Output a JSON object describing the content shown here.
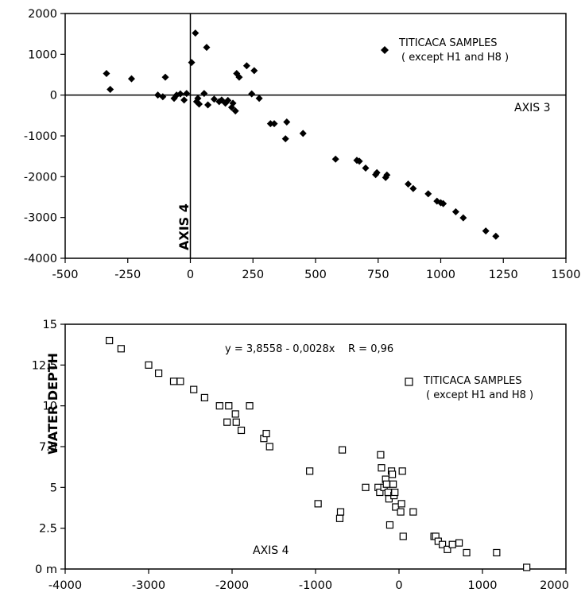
{
  "chart_data": [
    {
      "type": "scatter",
      "title": "",
      "xlabel": "AXIS 3",
      "ylabel": "AXIS 4",
      "xlim": [
        -500,
        1500
      ],
      "ylim": [
        -4000,
        2000
      ],
      "x_ticks": [
        "-500",
        "-250",
        "0",
        "250",
        "500",
        "750",
        "1000",
        "1250",
        "1500"
      ],
      "y_ticks": [
        "2000",
        "1000",
        "0",
        "-1000",
        "-2000",
        "-3000",
        "-4000"
      ],
      "reference_lines": "x = 0 and y = 0",
      "grid": false,
      "legend": {
        "position": "top-right",
        "marker": "filled-diamond",
        "lines": [
          "TITICACA SAMPLES",
          "( except H1 and H8 )"
        ]
      },
      "series": [
        {
          "marker": "filled-diamond",
          "points": [
            [
              -335,
              530
            ],
            [
              -320,
              140
            ],
            [
              -235,
              400
            ],
            [
              -130,
              0
            ],
            [
              -110,
              -40
            ],
            [
              -100,
              440
            ],
            [
              -65,
              -80
            ],
            [
              -55,
              0
            ],
            [
              -40,
              30
            ],
            [
              -25,
              -120
            ],
            [
              -15,
              40
            ],
            [
              5,
              800
            ],
            [
              20,
              1520
            ],
            [
              25,
              -160
            ],
            [
              30,
              -80
            ],
            [
              35,
              -220
            ],
            [
              55,
              40
            ],
            [
              65,
              1170
            ],
            [
              70,
              -240
            ],
            [
              95,
              -100
            ],
            [
              115,
              -160
            ],
            [
              125,
              -120
            ],
            [
              140,
              -200
            ],
            [
              150,
              -130
            ],
            [
              165,
              -300
            ],
            [
              170,
              -200
            ],
            [
              180,
              -390
            ],
            [
              185,
              530
            ],
            [
              195,
              440
            ],
            [
              225,
              720
            ],
            [
              245,
              30
            ],
            [
              255,
              600
            ],
            [
              275,
              -80
            ],
            [
              320,
              -700
            ],
            [
              335,
              -700
            ],
            [
              380,
              -1070
            ],
            [
              385,
              -660
            ],
            [
              450,
              -940
            ],
            [
              580,
              -1570
            ],
            [
              665,
              -1600
            ],
            [
              675,
              -1620
            ],
            [
              700,
              -1790
            ],
            [
              740,
              -1950
            ],
            [
              745,
              -1900
            ],
            [
              780,
              -2020
            ],
            [
              785,
              -1960
            ],
            [
              870,
              -2180
            ],
            [
              890,
              -2290
            ],
            [
              950,
              -2420
            ],
            [
              985,
              -2600
            ],
            [
              1000,
              -2640
            ],
            [
              1010,
              -2660
            ],
            [
              1060,
              -2860
            ],
            [
              1090,
              -3010
            ],
            [
              1180,
              -3330
            ],
            [
              1220,
              -3460
            ]
          ]
        }
      ]
    },
    {
      "type": "scatter",
      "title": "",
      "xlabel": "AXIS 4",
      "ylabel": "WATER DEPTH",
      "xlim": [
        -4000,
        2000
      ],
      "ylim": [
        0,
        15
      ],
      "x_ticks": [
        "-4000",
        "-3000",
        "-2000",
        "-1000",
        "0",
        "1000",
        "2000"
      ],
      "y_ticks": [
        "15",
        "12.5",
        "10",
        "7.5",
        "5",
        "2.5",
        "0 m"
      ],
      "annotation": "y = 3,8558 - 0,0028x    R = 0,96",
      "grid": false,
      "legend": {
        "position": "top-right",
        "marker": "open-square",
        "lines": [
          "TITICACA SAMPLES",
          "( except H1 and H8 )"
        ]
      },
      "series": [
        {
          "marker": "open-square",
          "points": [
            [
              -3470,
              14
            ],
            [
              -3330,
              13.5
            ],
            [
              -3000,
              12.5
            ],
            [
              -2880,
              12
            ],
            [
              -2700,
              11.5
            ],
            [
              -2620,
              11.5
            ],
            [
              -2460,
              11
            ],
            [
              -2330,
              10.5
            ],
            [
              -2150,
              10
            ],
            [
              -2040,
              10
            ],
            [
              -2060,
              9
            ],
            [
              -1960,
              9.5
            ],
            [
              -1950,
              9
            ],
            [
              -1890,
              8.5
            ],
            [
              -1790,
              10
            ],
            [
              -1620,
              8
            ],
            [
              -1590,
              8.3
            ],
            [
              -1550,
              7.5
            ],
            [
              -1070,
              6
            ],
            [
              -970,
              4
            ],
            [
              -680,
              7.3
            ],
            [
              -700,
              3.5
            ],
            [
              -710,
              3.1
            ],
            [
              -400,
              5
            ],
            [
              -250,
              5
            ],
            [
              -230,
              4.7
            ],
            [
              -210,
              6.2
            ],
            [
              -220,
              7
            ],
            [
              -180,
              5
            ],
            [
              -160,
              5.5
            ],
            [
              -150,
              5.2
            ],
            [
              -130,
              4.7
            ],
            [
              -120,
              4.3
            ],
            [
              -110,
              2.7
            ],
            [
              -90,
              6
            ],
            [
              -80,
              5.8
            ],
            [
              -70,
              5.2
            ],
            [
              -60,
              4.5
            ],
            [
              -50,
              4.7
            ],
            [
              -40,
              3.8
            ],
            [
              20,
              3.5
            ],
            [
              30,
              4
            ],
            [
              40,
              6
            ],
            [
              50,
              2
            ],
            [
              170,
              3.5
            ],
            [
              420,
              2
            ],
            [
              440,
              2
            ],
            [
              470,
              1.7
            ],
            [
              520,
              1.5
            ],
            [
              580,
              1.2
            ],
            [
              640,
              1.5
            ],
            [
              720,
              1.6
            ],
            [
              810,
              1
            ],
            [
              1170,
              1
            ],
            [
              1530,
              0.1
            ]
          ]
        }
      ]
    }
  ]
}
